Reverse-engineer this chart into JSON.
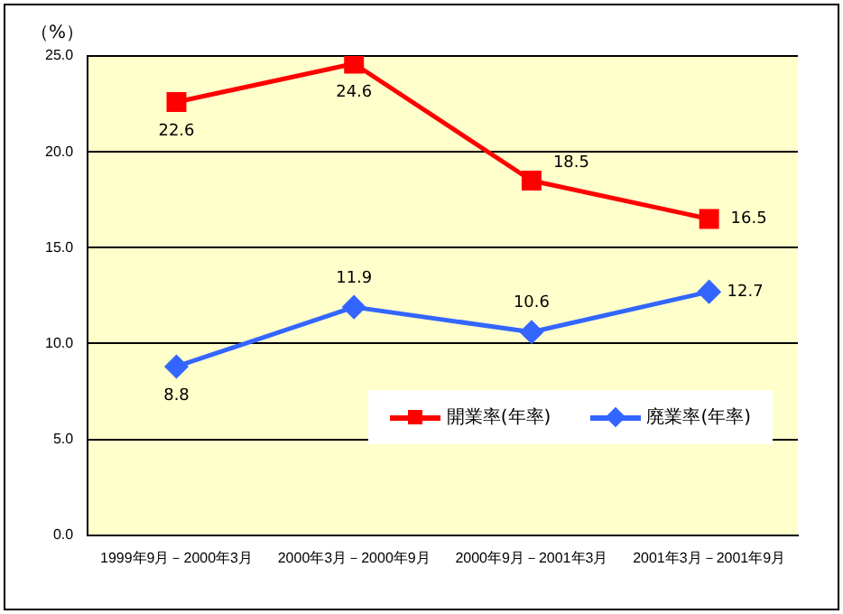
{
  "chart_data": {
    "type": "line",
    "ylabel": "（%）",
    "categories": [
      "1999年9月－2000年3月",
      "2000年3月－2000年9月",
      "2000年9月－2001年3月",
      "2001年3月－2001年9月"
    ],
    "series": [
      {
        "name": "開業率(年率)",
        "color": "#ff0000",
        "marker": "square",
        "values": [
          22.6,
          24.6,
          18.5,
          16.5
        ]
      },
      {
        "name": "廃業率(年率)",
        "color": "#3366ff",
        "marker": "diamond",
        "values": [
          8.8,
          11.9,
          10.6,
          12.7
        ]
      }
    ],
    "ylim": [
      0,
      25
    ],
    "yticks": [
      {
        "value": 0,
        "label": "0.0"
      },
      {
        "value": 5,
        "label": "5.0"
      },
      {
        "value": 10,
        "label": "10.0"
      },
      {
        "value": 15,
        "label": "15.0"
      },
      {
        "value": 20,
        "label": "20.0"
      },
      {
        "value": 25,
        "label": "25.0"
      }
    ],
    "grid": "y",
    "legend": "bottom right",
    "data_labels": true
  }
}
